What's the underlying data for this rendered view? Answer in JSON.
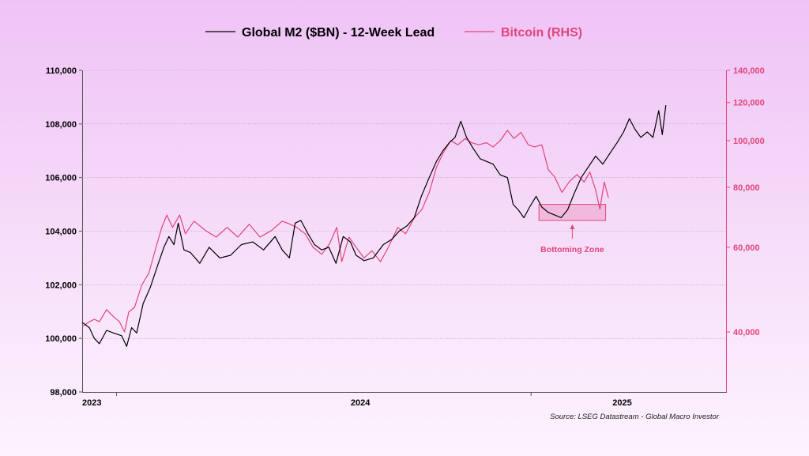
{
  "chart_data": {
    "type": "line",
    "title": "",
    "xlabel": "",
    "ylabel": "",
    "x_ticks": [
      "2023",
      "2024",
      "2025"
    ],
    "y_left": {
      "range": [
        98000,
        110000
      ],
      "ticks": [
        "98,000",
        "100,000",
        "102,000",
        "104,000",
        "106,000",
        "108,000",
        "110,000"
      ],
      "color": "#000000"
    },
    "y_right": {
      "scale": "log",
      "ticks": [
        "40,000",
        "60,000",
        "80,000",
        "100,000",
        "120,000",
        "140,000"
      ],
      "color": "#e0457a"
    },
    "grid": "horizontal",
    "legend_position": "top-center",
    "series": [
      {
        "name": "Global M2 ($BN) - 12-Week Lead",
        "axis": "left",
        "color": "#000000",
        "points": [
          [
            "2022-12-15",
            100600
          ],
          [
            "2022-12-25",
            100400
          ],
          [
            "2023-01-01",
            100000
          ],
          [
            "2023-01-08",
            99800
          ],
          [
            "2023-01-18",
            100300
          ],
          [
            "2023-01-28",
            100200
          ],
          [
            "2023-02-08",
            100100
          ],
          [
            "2023-02-15",
            99700
          ],
          [
            "2023-02-22",
            100400
          ],
          [
            "2023-03-01",
            100200
          ],
          [
            "2023-03-10",
            101300
          ],
          [
            "2023-03-20",
            101900
          ],
          [
            "2023-03-30",
            102700
          ],
          [
            "2023-04-08",
            103400
          ],
          [
            "2023-04-15",
            103800
          ],
          [
            "2023-04-22",
            103500
          ],
          [
            "2023-04-28",
            104300
          ],
          [
            "2023-05-06",
            103300
          ],
          [
            "2023-05-15",
            103200
          ],
          [
            "2023-05-28",
            102800
          ],
          [
            "2023-06-10",
            103400
          ],
          [
            "2023-06-25",
            103000
          ],
          [
            "2023-07-10",
            103100
          ],
          [
            "2023-07-25",
            103500
          ],
          [
            "2023-08-10",
            103600
          ],
          [
            "2023-08-25",
            103300
          ],
          [
            "2023-09-10",
            103800
          ],
          [
            "2023-09-20",
            103300
          ],
          [
            "2023-09-30",
            103000
          ],
          [
            "2023-10-08",
            104300
          ],
          [
            "2023-10-16",
            104400
          ],
          [
            "2023-10-26",
            103900
          ],
          [
            "2023-11-04",
            103500
          ],
          [
            "2023-11-14",
            103300
          ],
          [
            "2023-11-24",
            103400
          ],
          [
            "2023-12-04",
            102800
          ],
          [
            "2023-12-14",
            103800
          ],
          [
            "2023-12-24",
            103600
          ],
          [
            "2024-01-01",
            103100
          ],
          [
            "2024-01-12",
            102900
          ],
          [
            "2024-01-25",
            103000
          ],
          [
            "2024-02-08",
            103500
          ],
          [
            "2024-02-20",
            103700
          ],
          [
            "2024-03-01",
            104000
          ],
          [
            "2024-03-12",
            104200
          ],
          [
            "2024-03-22",
            104500
          ],
          [
            "2024-04-01",
            105300
          ],
          [
            "2024-04-12",
            106000
          ],
          [
            "2024-04-22",
            106600
          ],
          [
            "2024-05-01",
            107000
          ],
          [
            "2024-05-10",
            107300
          ],
          [
            "2024-05-18",
            107500
          ],
          [
            "2024-05-26",
            108100
          ],
          [
            "2024-06-03",
            107500
          ],
          [
            "2024-06-12",
            107100
          ],
          [
            "2024-06-22",
            106700
          ],
          [
            "2024-07-01",
            106600
          ],
          [
            "2024-07-10",
            106500
          ],
          [
            "2024-07-20",
            106100
          ],
          [
            "2024-07-30",
            106000
          ],
          [
            "2024-08-07",
            105000
          ],
          [
            "2024-08-14",
            104800
          ],
          [
            "2024-08-22",
            104500
          ],
          [
            "2024-08-30",
            104900
          ],
          [
            "2024-09-08",
            105300
          ],
          [
            "2024-09-16",
            104900
          ],
          [
            "2024-09-25",
            104700
          ],
          [
            "2024-10-04",
            104600
          ],
          [
            "2024-10-13",
            104500
          ],
          [
            "2024-10-22",
            104800
          ],
          [
            "2024-10-31",
            105400
          ],
          [
            "2024-11-10",
            106000
          ],
          [
            "2024-11-20",
            106400
          ],
          [
            "2024-11-30",
            106800
          ],
          [
            "2024-12-10",
            106500
          ],
          [
            "2024-12-20",
            106900
          ],
          [
            "2024-12-30",
            107300
          ],
          [
            "2025-01-08",
            107700
          ],
          [
            "2025-01-16",
            108200
          ],
          [
            "2025-01-24",
            107800
          ],
          [
            "2025-02-01",
            107500
          ],
          [
            "2025-02-10",
            107700
          ],
          [
            "2025-02-18",
            107500
          ],
          [
            "2025-02-26",
            108500
          ],
          [
            "2025-03-03",
            107600
          ],
          [
            "2025-03-08",
            108700
          ]
        ]
      },
      {
        "name": "Bitcoin (RHS)",
        "axis": "right",
        "color": "#e0457a",
        "points": [
          [
            "2022-12-15",
            41000
          ],
          [
            "2022-12-25",
            42000
          ],
          [
            "2023-01-01",
            42500
          ],
          [
            "2023-01-08",
            42000
          ],
          [
            "2023-01-18",
            44500
          ],
          [
            "2023-01-28",
            43000
          ],
          [
            "2023-02-05",
            42000
          ],
          [
            "2023-02-12",
            40000
          ],
          [
            "2023-02-18",
            44000
          ],
          [
            "2023-02-26",
            45000
          ],
          [
            "2023-03-08",
            50000
          ],
          [
            "2023-03-18",
            53000
          ],
          [
            "2023-03-28",
            60000
          ],
          [
            "2023-04-05",
            66000
          ],
          [
            "2023-04-12",
            70000
          ],
          [
            "2023-04-20",
            66000
          ],
          [
            "2023-04-30",
            70000
          ],
          [
            "2023-05-08",
            64000
          ],
          [
            "2023-05-20",
            68000
          ],
          [
            "2023-06-05",
            65000
          ],
          [
            "2023-06-20",
            63000
          ],
          [
            "2023-07-05",
            66000
          ],
          [
            "2023-07-20",
            63000
          ],
          [
            "2023-08-05",
            67000
          ],
          [
            "2023-08-20",
            63000
          ],
          [
            "2023-09-05",
            65000
          ],
          [
            "2023-09-20",
            68000
          ],
          [
            "2023-10-01",
            67000
          ],
          [
            "2023-10-10",
            66000
          ],
          [
            "2023-10-22",
            64000
          ],
          [
            "2023-11-02",
            60000
          ],
          [
            "2023-11-14",
            58000
          ],
          [
            "2023-11-25",
            61000
          ],
          [
            "2023-12-05",
            66000
          ],
          [
            "2023-12-12",
            56000
          ],
          [
            "2023-12-22",
            63000
          ],
          [
            "2024-01-01",
            60000
          ],
          [
            "2024-01-12",
            57000
          ],
          [
            "2024-01-23",
            59000
          ],
          [
            "2024-02-04",
            56000
          ],
          [
            "2024-02-15",
            60000
          ],
          [
            "2024-02-28",
            66000
          ],
          [
            "2024-03-10",
            64000
          ],
          [
            "2024-03-22",
            69000
          ],
          [
            "2024-04-02",
            72000
          ],
          [
            "2024-04-12",
            78000
          ],
          [
            "2024-04-22",
            88000
          ],
          [
            "2024-05-01",
            94000
          ],
          [
            "2024-05-12",
            100000
          ],
          [
            "2024-05-22",
            98000
          ],
          [
            "2024-06-01",
            101000
          ],
          [
            "2024-06-10",
            99000
          ],
          [
            "2024-06-20",
            98000
          ],
          [
            "2024-07-01",
            99000
          ],
          [
            "2024-07-10",
            97000
          ],
          [
            "2024-07-20",
            100000
          ],
          [
            "2024-07-30",
            105000
          ],
          [
            "2024-08-08",
            101000
          ],
          [
            "2024-08-18",
            104000
          ],
          [
            "2024-08-28",
            98000
          ],
          [
            "2024-09-06",
            97000
          ],
          [
            "2024-09-16",
            98000
          ],
          [
            "2024-09-25",
            87000
          ],
          [
            "2024-10-04",
            84000
          ],
          [
            "2024-10-14",
            78000
          ],
          [
            "2024-10-24",
            82000
          ],
          [
            "2024-11-04",
            85000
          ],
          [
            "2024-11-14",
            82000
          ],
          [
            "2024-11-22",
            86000
          ],
          [
            "2024-11-30",
            79000
          ],
          [
            "2024-12-06",
            72000
          ],
          [
            "2024-12-12",
            82000
          ],
          [
            "2024-12-18",
            76000
          ]
        ]
      }
    ],
    "annotations": [
      {
        "label": "Bottoming Zone",
        "color": "#e0457a",
        "x_range": [
          "2024-09-12",
          "2024-12-14"
        ]
      }
    ],
    "source": "Source: LSEG Datastream - Global Macro Investor"
  }
}
